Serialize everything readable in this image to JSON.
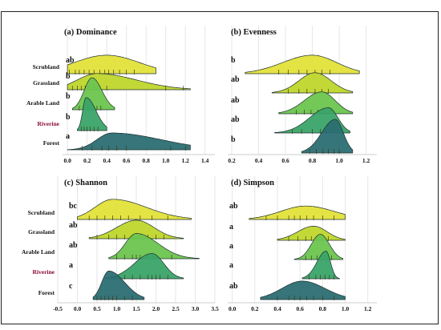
{
  "chart_data": [
    {
      "type": "ridgeline",
      "panel_title": "(a) Dominance",
      "categories": [
        "Scrubland",
        "Grassland",
        "Arable Land",
        "Riverine",
        "Forest"
      ],
      "x_ticks": [
        "0.0",
        "0.2",
        "0.4",
        "0.6",
        "0.8",
        "1.0",
        "1.2",
        "1.4"
      ],
      "xlim": [
        -0.05,
        1.5
      ],
      "letters": [
        "ab",
        "b",
        "b",
        "b",
        "a"
      ],
      "series": [
        {
          "mode": 0.4,
          "sd_left": 0.33,
          "sd_right": 0.33,
          "range": [
            0.0,
            0.9
          ],
          "peak": 0.55,
          "rug": [
            0.02,
            0.08,
            0.12,
            0.17,
            0.22,
            0.27,
            0.33,
            0.38,
            0.42,
            0.47,
            0.53,
            0.6,
            0.68
          ]
        },
        {
          "mode": 0.3,
          "sd_left": 0.2,
          "sd_right": 0.4,
          "range": [
            0.0,
            1.25
          ],
          "peak": 0.48,
          "rug": [
            0.05,
            0.1,
            0.14,
            0.18,
            0.22,
            0.27,
            0.33,
            0.4,
            1.0,
            1.18
          ]
        },
        {
          "mode": 0.25,
          "sd_left": 0.08,
          "sd_right": 0.1,
          "range": [
            0.05,
            0.48
          ],
          "peak": 0.95,
          "rug": [
            0.12,
            0.16,
            0.2,
            0.24,
            0.27,
            0.3,
            0.34
          ]
        },
        {
          "mode": 0.19,
          "sd_left": 0.035,
          "sd_right": 0.1,
          "range": [
            0.1,
            0.4
          ],
          "peak": 0.98,
          "rug": [
            0.14,
            0.17,
            0.2,
            0.23,
            0.27,
            0.31
          ]
        },
        {
          "mode": 0.45,
          "sd_left": 0.15,
          "sd_right": 0.5,
          "range": [
            0.0,
            1.25
          ],
          "peak": 0.5,
          "rug": [
            0.15,
            0.25,
            0.35,
            0.42,
            0.5,
            0.6,
            1.05,
            1.2
          ]
        }
      ]
    },
    {
      "type": "ridgeline",
      "panel_title": "(b) Evenness",
      "categories": [
        "Scrubland",
        "Grassland",
        "Arable Land",
        "Riverine",
        "Forest"
      ],
      "x_ticks": [
        "0.2",
        "0.4",
        "0.6",
        "0.8",
        "1.0",
        "1.2"
      ],
      "xlim": [
        0.17,
        1.28
      ],
      "letters": [
        "b",
        "ab",
        "ab",
        "ab",
        "b"
      ],
      "series": [
        {
          "mode": 0.8,
          "sd_left": 0.22,
          "sd_right": 0.18,
          "range": [
            0.3,
            1.15
          ],
          "peak": 0.55,
          "rug": [
            0.55,
            0.62,
            0.7,
            0.76,
            0.82,
            0.87,
            0.93
          ]
        },
        {
          "mode": 0.82,
          "sd_left": 0.12,
          "sd_right": 0.12,
          "range": [
            0.5,
            1.1
          ],
          "peak": 0.6,
          "rug": [
            0.62,
            0.7,
            0.76,
            0.82,
            0.87,
            0.92
          ]
        },
        {
          "mode": 0.87,
          "sd_left": 0.13,
          "sd_right": 0.1,
          "range": [
            0.55,
            1.1
          ],
          "peak": 0.65,
          "rug": [
            0.68,
            0.74,
            0.79,
            0.84,
            0.88,
            0.93
          ]
        },
        {
          "mode": 0.92,
          "sd_left": 0.14,
          "sd_right": 0.07,
          "range": [
            0.52,
            1.08
          ],
          "peak": 0.75,
          "rug": [
            0.65,
            0.72,
            0.8,
            0.86,
            0.9,
            0.95
          ]
        },
        {
          "mode": 0.97,
          "sd_left": 0.1,
          "sd_right": 0.06,
          "range": [
            0.72,
            1.1
          ],
          "peak": 1.0,
          "rug": [
            0.78,
            0.83,
            0.88,
            0.92,
            0.96,
            1.0
          ]
        }
      ]
    },
    {
      "type": "ridgeline",
      "panel_title": "(c) Shannon",
      "categories": [
        "Scrubland",
        "Grassland",
        "Arable Land",
        "Riverine",
        "Forest"
      ],
      "x_ticks": [
        "-0.5",
        "0.0",
        "0.5",
        "1.0",
        "1.5",
        "2.0",
        "2.5",
        "3.0",
        "3.5"
      ],
      "xlim": [
        -0.5,
        3.5
      ],
      "letters": [
        "bc",
        "ab",
        "ab",
        "a",
        "c"
      ],
      "series": [
        {
          "mode": 0.9,
          "sd_left": 0.45,
          "sd_right": 0.85,
          "range": [
            0.0,
            2.9
          ],
          "peak": 0.6,
          "rug": [
            0.3,
            0.5,
            0.7,
            0.9,
            1.1,
            1.3,
            1.6,
            1.9,
            2.3
          ]
        },
        {
          "mode": 1.5,
          "sd_left": 0.5,
          "sd_right": 0.45,
          "range": [
            0.3,
            2.7
          ],
          "peak": 0.55,
          "rug": [
            0.5,
            0.8,
            1.0,
            1.2,
            1.4,
            1.6,
            1.8,
            2.0,
            2.2
          ]
        },
        {
          "mode": 1.5,
          "sd_left": 0.28,
          "sd_right": 0.55,
          "range": [
            0.8,
            3.1
          ],
          "peak": 0.75,
          "rug": [
            1.0,
            1.2,
            1.4,
            1.5,
            1.6,
            1.8,
            2.0,
            2.4
          ]
        },
        {
          "mode": 1.9,
          "sd_left": 0.45,
          "sd_right": 0.3,
          "range": [
            0.7,
            2.7
          ],
          "peak": 0.75,
          "rug": [
            1.2,
            1.4,
            1.6,
            1.8,
            1.9,
            2.0,
            2.1,
            2.3
          ]
        },
        {
          "mode": 0.8,
          "sd_left": 0.18,
          "sd_right": 0.4,
          "range": [
            0.4,
            1.7
          ],
          "peak": 0.85,
          "rug": [
            0.5,
            0.6,
            0.7,
            0.8,
            0.9,
            1.0,
            1.2,
            1.4
          ]
        }
      ]
    },
    {
      "type": "ridgeline",
      "panel_title": "(d) Simpson",
      "categories": [
        "Scrubland",
        "Grassland",
        "Arable Land",
        "Riverine",
        "Forest"
      ],
      "x_ticks": [
        "0.0",
        "0.2",
        "0.4",
        "0.6",
        "0.8",
        "1.0",
        "1.2"
      ],
      "xlim": [
        -0.04,
        1.28
      ],
      "letters": [
        "ab",
        "a",
        "a",
        "a",
        "ab"
      ],
      "series": [
        {
          "mode": 0.65,
          "sd_left": 0.22,
          "sd_right": 0.25,
          "range": [
            0.15,
            1.0
          ],
          "peak": 0.4,
          "rug": [
            0.3,
            0.4,
            0.5,
            0.55,
            0.6,
            0.66,
            0.72,
            0.8,
            0.9
          ]
        },
        {
          "mode": 0.72,
          "sd_left": 0.14,
          "sd_right": 0.12,
          "range": [
            0.4,
            1.0
          ],
          "peak": 0.42,
          "rug": [
            0.5,
            0.58,
            0.65,
            0.7,
            0.75,
            0.8,
            0.85
          ]
        },
        {
          "mode": 0.78,
          "sd_left": 0.08,
          "sd_right": 0.08,
          "range": [
            0.55,
            0.98
          ],
          "peak": 0.75,
          "rug": [
            0.65,
            0.7,
            0.75,
            0.8,
            0.84,
            0.88
          ]
        },
        {
          "mode": 0.83,
          "sd_left": 0.08,
          "sd_right": 0.04,
          "range": [
            0.62,
            0.95
          ],
          "peak": 0.82,
          "rug": [
            0.68,
            0.74,
            0.78,
            0.82,
            0.86,
            0.9
          ]
        },
        {
          "mode": 0.62,
          "sd_left": 0.18,
          "sd_right": 0.2,
          "range": [
            0.25,
            1.0
          ],
          "peak": 0.55,
          "rug": [
            0.4,
            0.5,
            0.55,
            0.6,
            0.66,
            0.72,
            0.8,
            0.9
          ]
        }
      ]
    }
  ],
  "colors": {
    "Scrubland": "#e3e23a",
    "Grassland": "#bfd62c",
    "Arable Land": "#6cc54f",
    "Riverine": "#3aa468",
    "Forest": "#2b6e72",
    "outline": "#1f2e2e",
    "label_highlight": "#8b0a3a"
  },
  "highlight_category": "Riverine"
}
